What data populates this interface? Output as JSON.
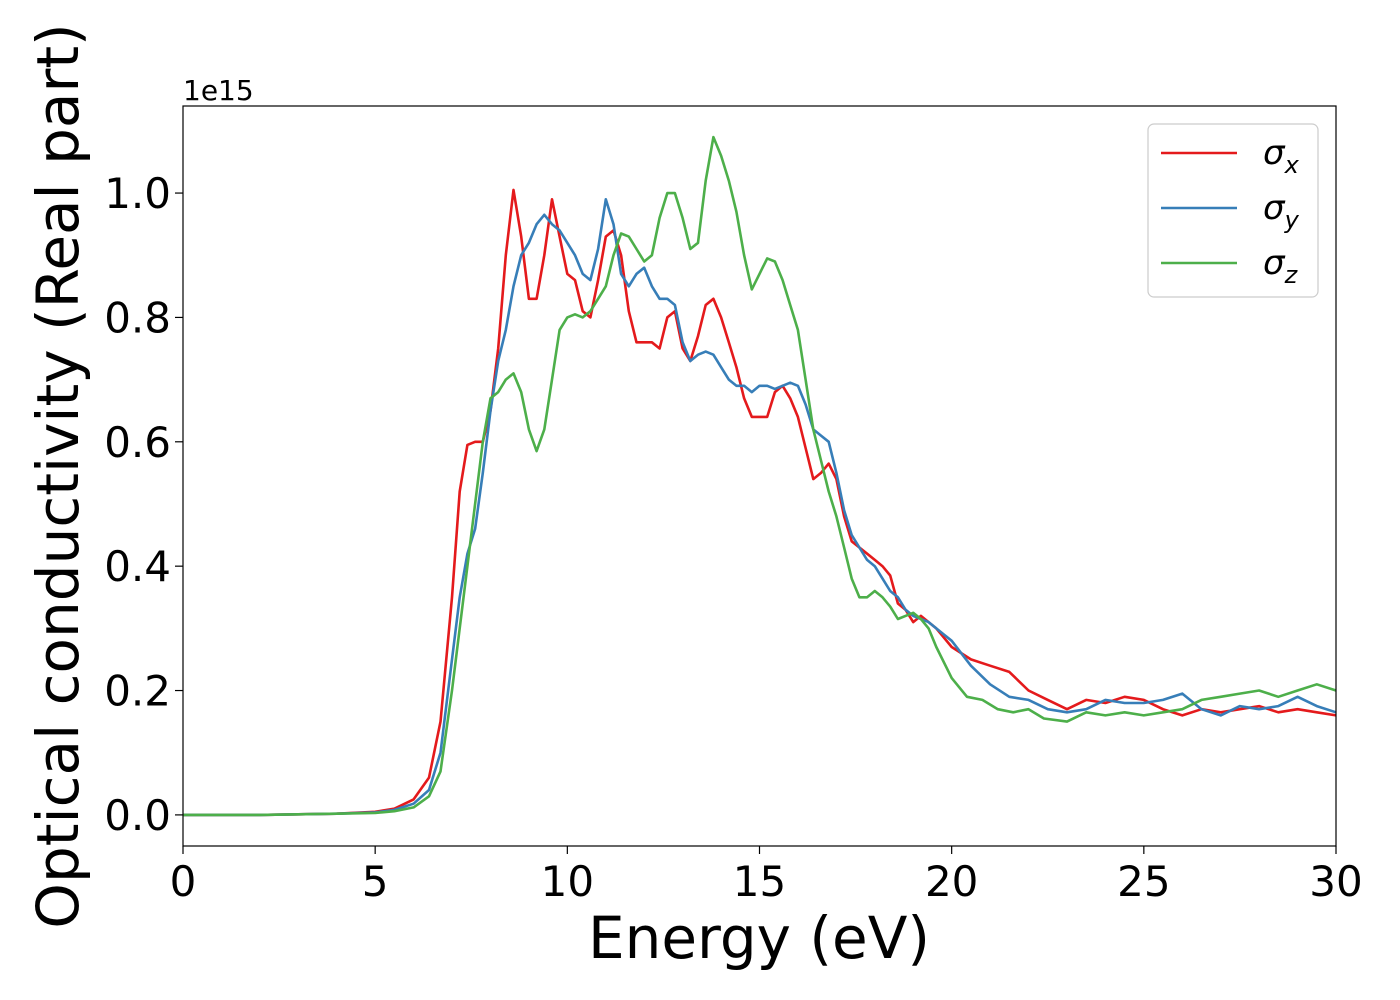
{
  "chart_data": {
    "type": "line",
    "xlabel": "Energy (eV)",
    "ylabel": "Optical conductivity (Real part)",
    "offset_label": "1e15",
    "xlim": [
      0,
      30
    ],
    "ylim": [
      -0.05,
      1.14
    ],
    "x_ticks": [
      0,
      5,
      10,
      15,
      20,
      25,
      30
    ],
    "x_tick_labels": [
      "0",
      "5",
      "10",
      "15",
      "20",
      "25",
      "30"
    ],
    "y_ticks": [
      0.0,
      0.2,
      0.4,
      0.6,
      0.8,
      1.0
    ],
    "y_tick_labels": [
      "0.0",
      "0.2",
      "0.4",
      "0.6",
      "0.8",
      "1.0"
    ],
    "grid": false,
    "legend": {
      "position": "top-right"
    },
    "series": [
      {
        "name": "σ",
        "subscript": "x",
        "color": "#e41a1c",
        "points": [
          [
            0,
            0.0
          ],
          [
            2,
            0.0
          ],
          [
            4,
            0.002
          ],
          [
            5,
            0.005
          ],
          [
            5.5,
            0.01
          ],
          [
            6,
            0.025
          ],
          [
            6.4,
            0.06
          ],
          [
            6.7,
            0.15
          ],
          [
            7.0,
            0.35
          ],
          [
            7.2,
            0.52
          ],
          [
            7.4,
            0.595
          ],
          [
            7.6,
            0.6
          ],
          [
            7.8,
            0.6
          ],
          [
            8.0,
            0.65
          ],
          [
            8.2,
            0.75
          ],
          [
            8.4,
            0.9
          ],
          [
            8.6,
            1.005
          ],
          [
            8.8,
            0.93
          ],
          [
            9.0,
            0.83
          ],
          [
            9.2,
            0.83
          ],
          [
            9.4,
            0.9
          ],
          [
            9.6,
            0.99
          ],
          [
            9.8,
            0.93
          ],
          [
            10.0,
            0.87
          ],
          [
            10.2,
            0.86
          ],
          [
            10.4,
            0.81
          ],
          [
            10.6,
            0.8
          ],
          [
            10.8,
            0.86
          ],
          [
            11.0,
            0.93
          ],
          [
            11.2,
            0.94
          ],
          [
            11.4,
            0.9
          ],
          [
            11.6,
            0.81
          ],
          [
            11.8,
            0.76
          ],
          [
            12.0,
            0.76
          ],
          [
            12.2,
            0.76
          ],
          [
            12.4,
            0.75
          ],
          [
            12.6,
            0.8
          ],
          [
            12.8,
            0.81
          ],
          [
            13.0,
            0.75
          ],
          [
            13.2,
            0.73
          ],
          [
            13.4,
            0.77
          ],
          [
            13.6,
            0.82
          ],
          [
            13.8,
            0.83
          ],
          [
            14.0,
            0.8
          ],
          [
            14.2,
            0.76
          ],
          [
            14.4,
            0.72
          ],
          [
            14.6,
            0.67
          ],
          [
            14.8,
            0.64
          ],
          [
            15.0,
            0.64
          ],
          [
            15.2,
            0.64
          ],
          [
            15.4,
            0.68
          ],
          [
            15.6,
            0.69
          ],
          [
            15.8,
            0.67
          ],
          [
            16.0,
            0.64
          ],
          [
            16.2,
            0.59
          ],
          [
            16.4,
            0.54
          ],
          [
            16.6,
            0.55
          ],
          [
            16.8,
            0.565
          ],
          [
            17.0,
            0.54
          ],
          [
            17.2,
            0.48
          ],
          [
            17.4,
            0.44
          ],
          [
            17.6,
            0.43
          ],
          [
            17.8,
            0.42
          ],
          [
            18.0,
            0.41
          ],
          [
            18.2,
            0.4
          ],
          [
            18.4,
            0.385
          ],
          [
            18.6,
            0.34
          ],
          [
            18.8,
            0.33
          ],
          [
            19.0,
            0.31
          ],
          [
            19.2,
            0.32
          ],
          [
            19.4,
            0.31
          ],
          [
            19.6,
            0.3
          ],
          [
            20.0,
            0.27
          ],
          [
            20.5,
            0.25
          ],
          [
            21.0,
            0.24
          ],
          [
            21.5,
            0.23
          ],
          [
            22.0,
            0.2
          ],
          [
            22.5,
            0.185
          ],
          [
            23.0,
            0.17
          ],
          [
            23.5,
            0.185
          ],
          [
            24.0,
            0.18
          ],
          [
            24.5,
            0.19
          ],
          [
            25.0,
            0.185
          ],
          [
            25.5,
            0.17
          ],
          [
            26.0,
            0.16
          ],
          [
            26.5,
            0.17
          ],
          [
            27.0,
            0.165
          ],
          [
            27.5,
            0.17
          ],
          [
            28.0,
            0.175
          ],
          [
            28.5,
            0.165
          ],
          [
            29.0,
            0.17
          ],
          [
            29.5,
            0.165
          ],
          [
            30.0,
            0.16
          ]
        ]
      },
      {
        "name": "σ",
        "subscript": "y",
        "color": "#377eb8",
        "points": [
          [
            0,
            0.0
          ],
          [
            2,
            0.0
          ],
          [
            4,
            0.002
          ],
          [
            5,
            0.004
          ],
          [
            5.5,
            0.008
          ],
          [
            6,
            0.018
          ],
          [
            6.4,
            0.04
          ],
          [
            6.7,
            0.1
          ],
          [
            7.0,
            0.25
          ],
          [
            7.2,
            0.35
          ],
          [
            7.4,
            0.42
          ],
          [
            7.6,
            0.46
          ],
          [
            7.8,
            0.55
          ],
          [
            8.0,
            0.65
          ],
          [
            8.2,
            0.73
          ],
          [
            8.4,
            0.78
          ],
          [
            8.6,
            0.85
          ],
          [
            8.8,
            0.9
          ],
          [
            9.0,
            0.92
          ],
          [
            9.2,
            0.95
          ],
          [
            9.4,
            0.965
          ],
          [
            9.6,
            0.95
          ],
          [
            9.8,
            0.94
          ],
          [
            10.0,
            0.92
          ],
          [
            10.2,
            0.9
          ],
          [
            10.4,
            0.87
          ],
          [
            10.6,
            0.86
          ],
          [
            10.8,
            0.91
          ],
          [
            11.0,
            0.99
          ],
          [
            11.2,
            0.95
          ],
          [
            11.4,
            0.87
          ],
          [
            11.6,
            0.85
          ],
          [
            11.8,
            0.87
          ],
          [
            12.0,
            0.88
          ],
          [
            12.2,
            0.85
          ],
          [
            12.4,
            0.83
          ],
          [
            12.6,
            0.83
          ],
          [
            12.8,
            0.82
          ],
          [
            13.0,
            0.76
          ],
          [
            13.2,
            0.73
          ],
          [
            13.4,
            0.74
          ],
          [
            13.6,
            0.745
          ],
          [
            13.8,
            0.74
          ],
          [
            14.0,
            0.72
          ],
          [
            14.2,
            0.7
          ],
          [
            14.4,
            0.69
          ],
          [
            14.6,
            0.69
          ],
          [
            14.8,
            0.68
          ],
          [
            15.0,
            0.69
          ],
          [
            15.2,
            0.69
          ],
          [
            15.4,
            0.685
          ],
          [
            15.6,
            0.69
          ],
          [
            15.8,
            0.695
          ],
          [
            16.0,
            0.69
          ],
          [
            16.2,
            0.66
          ],
          [
            16.4,
            0.62
          ],
          [
            16.6,
            0.61
          ],
          [
            16.8,
            0.6
          ],
          [
            17.0,
            0.55
          ],
          [
            17.2,
            0.49
          ],
          [
            17.4,
            0.45
          ],
          [
            17.6,
            0.43
          ],
          [
            17.8,
            0.41
          ],
          [
            18.0,
            0.4
          ],
          [
            18.2,
            0.38
          ],
          [
            18.4,
            0.36
          ],
          [
            18.6,
            0.35
          ],
          [
            18.8,
            0.33
          ],
          [
            19.0,
            0.32
          ],
          [
            19.4,
            0.31
          ],
          [
            19.8,
            0.29
          ],
          [
            20.0,
            0.28
          ],
          [
            20.5,
            0.24
          ],
          [
            21.0,
            0.21
          ],
          [
            21.5,
            0.19
          ],
          [
            22.0,
            0.185
          ],
          [
            22.5,
            0.17
          ],
          [
            23.0,
            0.165
          ],
          [
            23.5,
            0.17
          ],
          [
            24.0,
            0.185
          ],
          [
            24.5,
            0.18
          ],
          [
            25.0,
            0.18
          ],
          [
            25.5,
            0.185
          ],
          [
            26.0,
            0.195
          ],
          [
            26.5,
            0.17
          ],
          [
            27.0,
            0.16
          ],
          [
            27.5,
            0.175
          ],
          [
            28.0,
            0.17
          ],
          [
            28.5,
            0.175
          ],
          [
            29.0,
            0.19
          ],
          [
            29.5,
            0.175
          ],
          [
            30.0,
            0.165
          ]
        ]
      },
      {
        "name": "σ",
        "subscript": "z",
        "color": "#4daf4a",
        "points": [
          [
            0,
            0.0
          ],
          [
            2,
            0.0
          ],
          [
            4,
            0.002
          ],
          [
            5,
            0.003
          ],
          [
            5.5,
            0.006
          ],
          [
            6,
            0.012
          ],
          [
            6.4,
            0.03
          ],
          [
            6.7,
            0.07
          ],
          [
            7.0,
            0.2
          ],
          [
            7.2,
            0.3
          ],
          [
            7.4,
            0.4
          ],
          [
            7.6,
            0.5
          ],
          [
            7.8,
            0.6
          ],
          [
            8.0,
            0.67
          ],
          [
            8.2,
            0.68
          ],
          [
            8.4,
            0.7
          ],
          [
            8.6,
            0.71
          ],
          [
            8.8,
            0.68
          ],
          [
            9.0,
            0.62
          ],
          [
            9.2,
            0.585
          ],
          [
            9.4,
            0.62
          ],
          [
            9.6,
            0.7
          ],
          [
            9.8,
            0.78
          ],
          [
            10.0,
            0.8
          ],
          [
            10.2,
            0.805
          ],
          [
            10.4,
            0.8
          ],
          [
            10.6,
            0.81
          ],
          [
            10.8,
            0.83
          ],
          [
            11.0,
            0.85
          ],
          [
            11.2,
            0.9
          ],
          [
            11.4,
            0.935
          ],
          [
            11.6,
            0.93
          ],
          [
            11.8,
            0.91
          ],
          [
            12.0,
            0.89
          ],
          [
            12.2,
            0.9
          ],
          [
            12.4,
            0.96
          ],
          [
            12.6,
            1.0
          ],
          [
            12.8,
            1.0
          ],
          [
            13.0,
            0.96
          ],
          [
            13.2,
            0.91
          ],
          [
            13.4,
            0.92
          ],
          [
            13.6,
            1.02
          ],
          [
            13.8,
            1.09
          ],
          [
            14.0,
            1.06
          ],
          [
            14.2,
            1.02
          ],
          [
            14.4,
            0.97
          ],
          [
            14.6,
            0.9
          ],
          [
            14.8,
            0.845
          ],
          [
            15.0,
            0.87
          ],
          [
            15.2,
            0.895
          ],
          [
            15.4,
            0.89
          ],
          [
            15.6,
            0.86
          ],
          [
            15.8,
            0.82
          ],
          [
            16.0,
            0.78
          ],
          [
            16.2,
            0.7
          ],
          [
            16.4,
            0.62
          ],
          [
            16.6,
            0.57
          ],
          [
            16.8,
            0.52
          ],
          [
            17.0,
            0.48
          ],
          [
            17.2,
            0.43
          ],
          [
            17.4,
            0.38
          ],
          [
            17.6,
            0.35
          ],
          [
            17.8,
            0.35
          ],
          [
            18.0,
            0.36
          ],
          [
            18.2,
            0.35
          ],
          [
            18.4,
            0.335
          ],
          [
            18.6,
            0.315
          ],
          [
            18.8,
            0.32
          ],
          [
            19.0,
            0.325
          ],
          [
            19.2,
            0.315
          ],
          [
            19.4,
            0.3
          ],
          [
            19.6,
            0.27
          ],
          [
            20.0,
            0.22
          ],
          [
            20.4,
            0.19
          ],
          [
            20.8,
            0.185
          ],
          [
            21.2,
            0.17
          ],
          [
            21.6,
            0.165
          ],
          [
            22.0,
            0.17
          ],
          [
            22.4,
            0.155
          ],
          [
            23.0,
            0.15
          ],
          [
            23.5,
            0.165
          ],
          [
            24.0,
            0.16
          ],
          [
            24.5,
            0.165
          ],
          [
            25.0,
            0.16
          ],
          [
            25.5,
            0.165
          ],
          [
            26.0,
            0.17
          ],
          [
            26.5,
            0.185
          ],
          [
            27.0,
            0.19
          ],
          [
            27.5,
            0.195
          ],
          [
            28.0,
            0.2
          ],
          [
            28.5,
            0.19
          ],
          [
            29.0,
            0.2
          ],
          [
            29.5,
            0.21
          ],
          [
            30.0,
            0.2
          ]
        ]
      }
    ]
  }
}
